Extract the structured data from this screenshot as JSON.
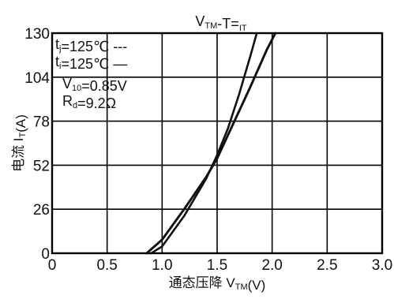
{
  "chart_data": {
    "type": "line",
    "title": "VTM-T=IT",
    "title_parts": [
      {
        "text": "V",
        "sub": false
      },
      {
        "text": "TM",
        "sub": true
      },
      {
        "text": "-T=",
        "sub": false
      },
      {
        "text": "IT",
        "sub": true
      }
    ],
    "xlabel": "通态压降 VTM(V)",
    "xlabel_parts": [
      {
        "text": "通态压降 V",
        "sub": false
      },
      {
        "text": "TM",
        "sub": true
      },
      {
        "text": "(V)",
        "sub": false
      }
    ],
    "ylabel": "电流 IT(A)",
    "ylabel_parts": [
      {
        "text": "电流 I",
        "sub": false
      },
      {
        "text": "T",
        "sub": true
      },
      {
        "text": "(A)",
        "sub": false
      }
    ],
    "xlim": [
      0,
      3.0
    ],
    "ylim": [
      0,
      130
    ],
    "xticks": [
      0,
      0.5,
      1.0,
      1.5,
      2.0,
      2.5,
      3.0
    ],
    "xtick_labels": [
      "0",
      "0.5",
      "1.0",
      "1.5",
      "2.0",
      "2.5",
      "3.0"
    ],
    "yticks": [
      0,
      26,
      52,
      78,
      104,
      130
    ],
    "ytick_labels": [
      "0",
      "26",
      "52",
      "78",
      "104",
      "130"
    ],
    "grid": true,
    "legend_placement": "top-left",
    "legend": [
      {
        "label": "tj=125℃ ---",
        "parts": [
          {
            "text": "t",
            "sub": false
          },
          {
            "text": "j",
            "sub": true
          },
          {
            "text": "=125℃ ---",
            "sub": false
          }
        ]
      },
      {
        "label": "ti=125℃ —",
        "parts": [
          {
            "text": "t",
            "sub": false
          },
          {
            "text": "i",
            "sub": true
          },
          {
            "text": "=125℃ —",
            "sub": false
          }
        ]
      }
    ],
    "annotations": [
      {
        "label": "V10=0.85V",
        "parts": [
          {
            "text": "V",
            "sub": false
          },
          {
            "text": "10",
            "sub": true
          },
          {
            "text": "=0.85V",
            "sub": false
          }
        ]
      },
      {
        "label": "Rd=9.2Ω",
        "parts": [
          {
            "text": "R",
            "sub": false
          },
          {
            "text": "d",
            "sub": true
          },
          {
            "text": "=9.2Ω",
            "sub": false
          }
        ]
      }
    ],
    "series": [
      {
        "style": "dashed",
        "x": [
          0.86,
          1.0,
          1.2,
          1.4,
          1.5,
          1.6,
          1.8,
          1.95,
          2.03
        ],
        "y": [
          0,
          8,
          26,
          45,
          56,
          70,
          98,
          120,
          130
        ]
      },
      {
        "style": "solid",
        "x": [
          0.9,
          1.0,
          1.2,
          1.4,
          1.5,
          1.6,
          1.7,
          1.8,
          1.86
        ],
        "y": [
          0,
          4,
          22,
          44,
          58,
          74,
          94,
          116,
          130
        ]
      }
    ]
  }
}
